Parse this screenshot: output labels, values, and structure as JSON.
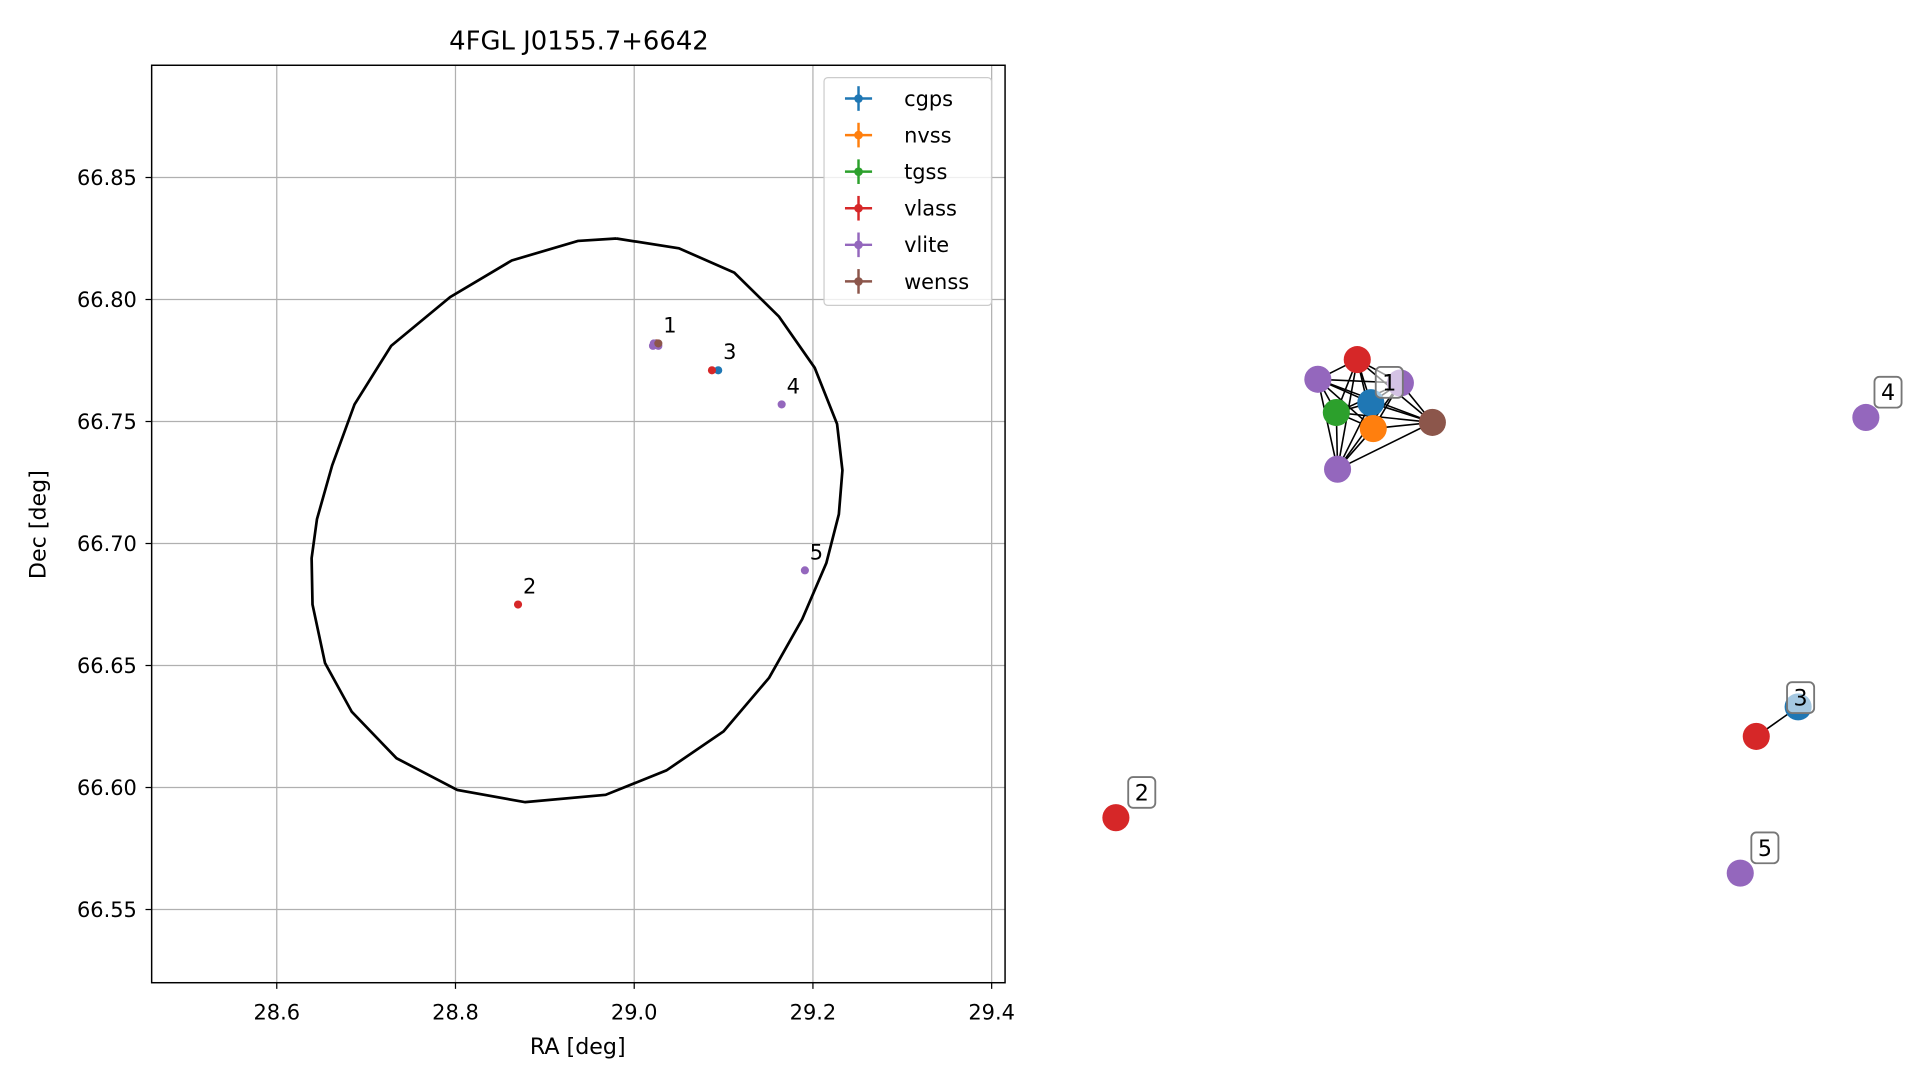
{
  "chart_data": [
    {
      "type": "scatter",
      "title": "4FGL J0155.7+6642",
      "xlabel": "RA [deg]",
      "ylabel": "Dec [deg]",
      "xlim": [
        28.46,
        29.415
      ],
      "ylim": [
        66.52,
        66.896
      ],
      "xticks": [
        28.6,
        28.8,
        {
          "value": 29,
          "label": "29.0"
        },
        29.2,
        29.4
      ],
      "yticks": [
        66.55,
        {
          "value": 66.6,
          "label": "66.60"
        },
        66.65,
        {
          "value": 66.7,
          "label": "66.70"
        },
        66.75,
        {
          "value": 66.8,
          "label": "66.80"
        },
        66.85
      ],
      "grid": true,
      "legend": "upper right",
      "series": [
        {
          "name": "cgps",
          "color": "#1f77b4",
          "x": [
            29.025,
            29.094
          ],
          "y": [
            66.782,
            66.771
          ]
        },
        {
          "name": "nvss",
          "color": "#ff7f0e",
          "x": [
            29.025
          ],
          "y": [
            66.782
          ]
        },
        {
          "name": "tgss",
          "color": "#2ca02c",
          "x": [
            29.024
          ],
          "y": [
            66.782
          ]
        },
        {
          "name": "vlass",
          "color": "#d62728",
          "x": [
            29.026,
            29.087,
            28.87
          ],
          "y": [
            66.782,
            66.771,
            66.675
          ]
        },
        {
          "name": "vlite",
          "color": "#9467bd",
          "x": [
            29.021,
            29.022,
            29.027,
            29.165,
            29.191
          ],
          "y": [
            66.781,
            66.782,
            66.781,
            66.757,
            66.689
          ]
        },
        {
          "name": "wenss",
          "color": "#8c564b",
          "x": [
            29.027
          ],
          "y": [
            66.782
          ]
        }
      ],
      "annotations": [
        {
          "text": "1",
          "x": 29.027,
          "y": 66.782
        },
        {
          "text": "2",
          "x": 28.87,
          "y": 66.675
        },
        {
          "text": "3",
          "x": 29.094,
          "y": 66.771
        },
        {
          "text": "4",
          "x": 29.165,
          "y": 66.757
        },
        {
          "text": "5",
          "x": 29.191,
          "y": 66.689
        }
      ],
      "ellipse": {
        "color": "#000000",
        "x": [
          28.98,
          29.05,
          29.112,
          29.162,
          29.202,
          29.227,
          29.233,
          29.229,
          29.215,
          29.188,
          29.151,
          29.1,
          29.036,
          28.968,
          28.878,
          28.802,
          28.734,
          28.684,
          28.654,
          28.64,
          28.639,
          28.645,
          28.662,
          28.687,
          28.728,
          28.794,
          28.863,
          28.937,
          28.98
        ],
        "y": [
          66.825,
          66.821,
          66.811,
          66.793,
          66.772,
          66.749,
          66.73,
          66.712,
          66.692,
          66.669,
          66.645,
          66.623,
          66.607,
          66.597,
          66.594,
          66.599,
          66.612,
          66.631,
          66.651,
          66.675,
          66.694,
          66.71,
          66.732,
          66.757,
          66.781,
          66.801,
          66.816,
          66.824,
          66.825
        ]
      }
    },
    {
      "type": "network",
      "labels": [
        "1",
        "2",
        "3",
        "4",
        "5"
      ]
    }
  ]
}
